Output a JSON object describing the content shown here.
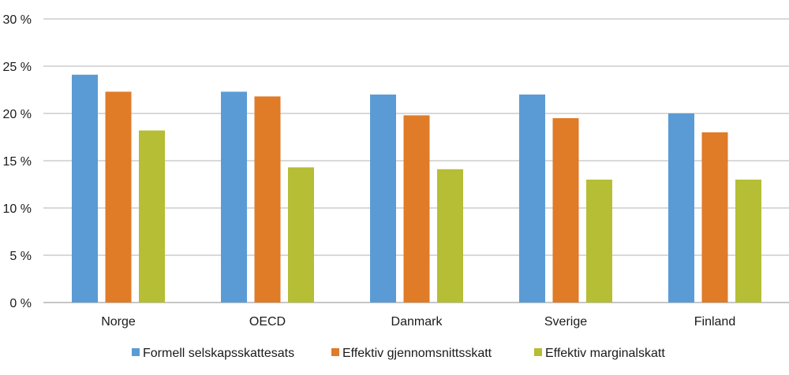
{
  "chart_data": {
    "type": "bar",
    "categories": [
      "Norge",
      "OECD",
      "Danmark",
      "Sverige",
      "Finland"
    ],
    "series": [
      {
        "name": "Formell selskapsskattesats",
        "color": "#5b9bd5",
        "values": [
          24.1,
          22.3,
          22.0,
          22.0,
          20.0
        ]
      },
      {
        "name": "Effektiv gjennomsnittsskatt",
        "color": "#e07b28",
        "values": [
          22.3,
          21.8,
          19.8,
          19.5,
          18.0
        ]
      },
      {
        "name": "Effektiv marginalskatt",
        "color": "#b5be35",
        "values": [
          18.2,
          14.3,
          14.1,
          13.0,
          13.0
        ]
      }
    ],
    "y_ticks": [
      0,
      5,
      10,
      15,
      20,
      25,
      30
    ],
    "y_tick_labels": [
      "0 %",
      "5 %",
      "10 %",
      "15 %",
      "20 %",
      "25 %",
      "30 %"
    ],
    "ylim": [
      0,
      30
    ],
    "grid": true,
    "legend_position": "bottom"
  }
}
